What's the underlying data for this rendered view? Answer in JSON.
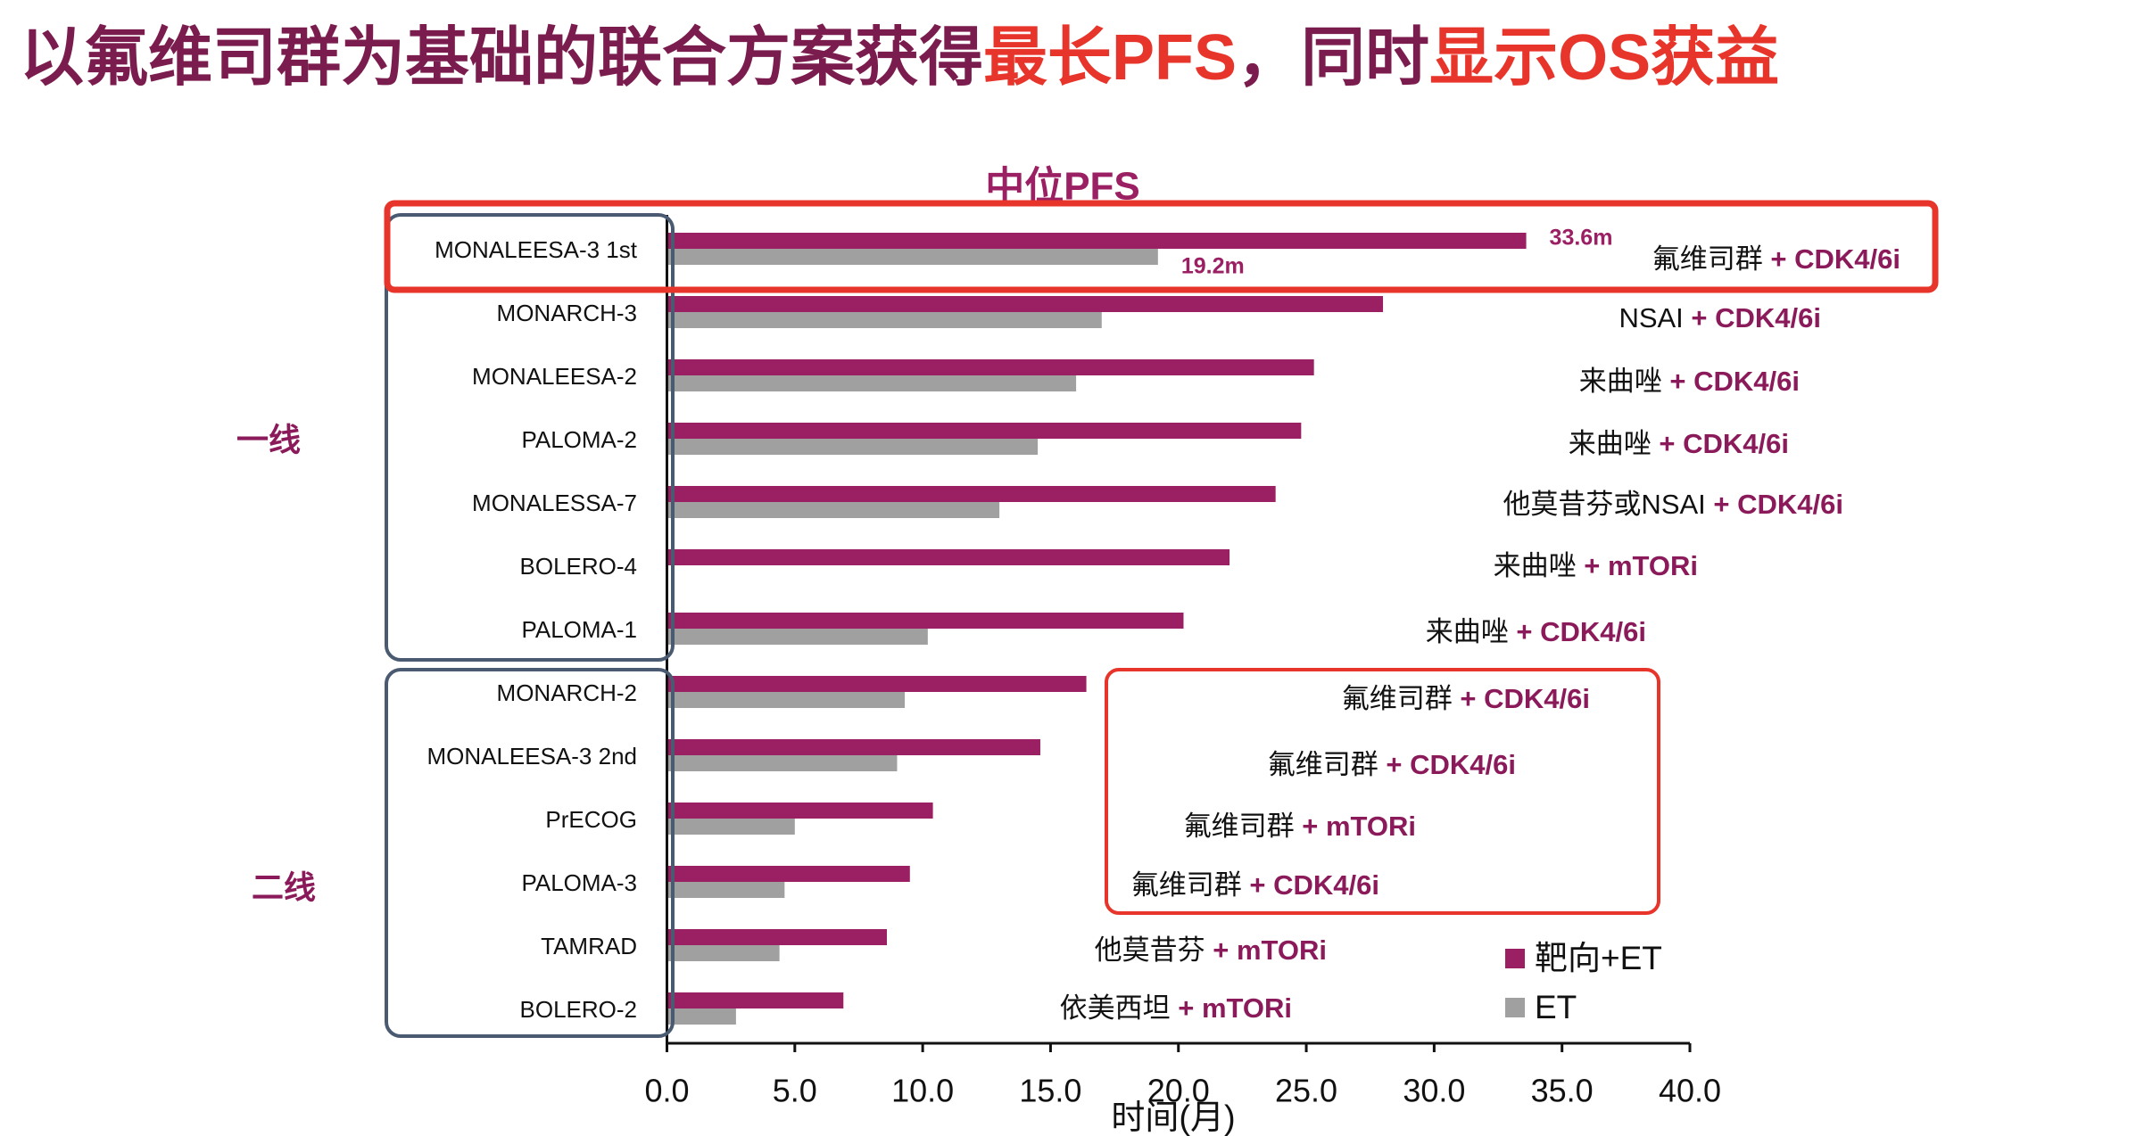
{
  "slide_title": [
    {
      "text": "以氟维司群为基础的联合方案获得",
      "color": "#7b1c4e"
    },
    {
      "text": "最长PFS",
      "color": "#e8352b"
    },
    {
      "text": "，同时",
      "color": "#7b1c4e"
    },
    {
      "text": "显示OS获益",
      "color": "#e8352b"
    }
  ],
  "chart_data": {
    "type": "hbar",
    "title": "中位PFS",
    "xlabel": "时间(月)",
    "categories": [
      "MONALEESA-3 1st",
      "MONARCH-3",
      "MONALEESA-2",
      "PALOMA-2",
      "MONALESSA-7",
      "BOLERO-4",
      "PALOMA-1",
      "MONARCH-2",
      "MONALEESA-3 2nd",
      "PrECOG",
      "PALOMA-3",
      "TAMRAD",
      "BOLERO-2"
    ],
    "series": [
      {
        "name": "靶向+ET",
        "color": "#9b1f63",
        "values": [
          33.6,
          28.0,
          25.3,
          24.8,
          23.8,
          22.0,
          20.2,
          16.4,
          14.6,
          10.4,
          9.5,
          8.6,
          6.9
        ],
        "value_labels": [
          "33.6m",
          null,
          null,
          null,
          null,
          null,
          null,
          null,
          null,
          null,
          null,
          null,
          null
        ]
      },
      {
        "name": "ET",
        "color": "#a0a0a0",
        "values": [
          19.2,
          17.0,
          16.0,
          14.5,
          13.0,
          null,
          10.2,
          9.3,
          9.0,
          5.0,
          4.6,
          4.4,
          2.7
        ],
        "value_labels": [
          "19.2m",
          null,
          null,
          null,
          null,
          null,
          null,
          null,
          null,
          null,
          null,
          null,
          null
        ]
      }
    ],
    "regimens": [
      {
        "base": "氟维司群",
        "add": "+ CDK4/6i"
      },
      {
        "base": "NSAI",
        "add": "+ CDK4/6i"
      },
      {
        "base": "来曲唑",
        "add": "+ CDK4/6i"
      },
      {
        "base": "来曲唑",
        "add": "+ CDK4/6i"
      },
      {
        "base": "他莫昔芬或NSAI",
        "add": "+ CDK4/6i"
      },
      {
        "base": "来曲唑",
        "add": "+ mTORi"
      },
      {
        "base": "来曲唑",
        "add": "+ CDK4/6i"
      },
      {
        "base": "氟维司群",
        "add": "+ CDK4/6i"
      },
      {
        "base": "氟维司群",
        "add": "+ CDK4/6i"
      },
      {
        "base": "氟维司群",
        "add": "+ mTORi"
      },
      {
        "base": "氟维司群",
        "add": "+ CDK4/6i"
      },
      {
        "base": "他莫昔芬",
        "add": "+ mTORi"
      },
      {
        "base": "依美西坦",
        "add": "+ mTORi"
      }
    ],
    "groups": [
      {
        "label": "一线"
      },
      {
        "label": "二线"
      }
    ],
    "xlim": [
      0,
      40
    ],
    "xticks": [
      {
        "value": 0,
        "label": "0.0"
      },
      {
        "value": 5,
        "label": "5.0"
      },
      {
        "value": 10,
        "label": "10.0"
      },
      {
        "value": 15,
        "label": "15.0"
      },
      {
        "value": 20,
        "label": "20.0"
      },
      {
        "value": 25,
        "label": "25.0"
      },
      {
        "value": 30,
        "label": "30.0"
      },
      {
        "value": 35,
        "label": "35.0"
      },
      {
        "value": 40,
        "label": "40.0"
      }
    ],
    "legend": "bottom-right"
  }
}
